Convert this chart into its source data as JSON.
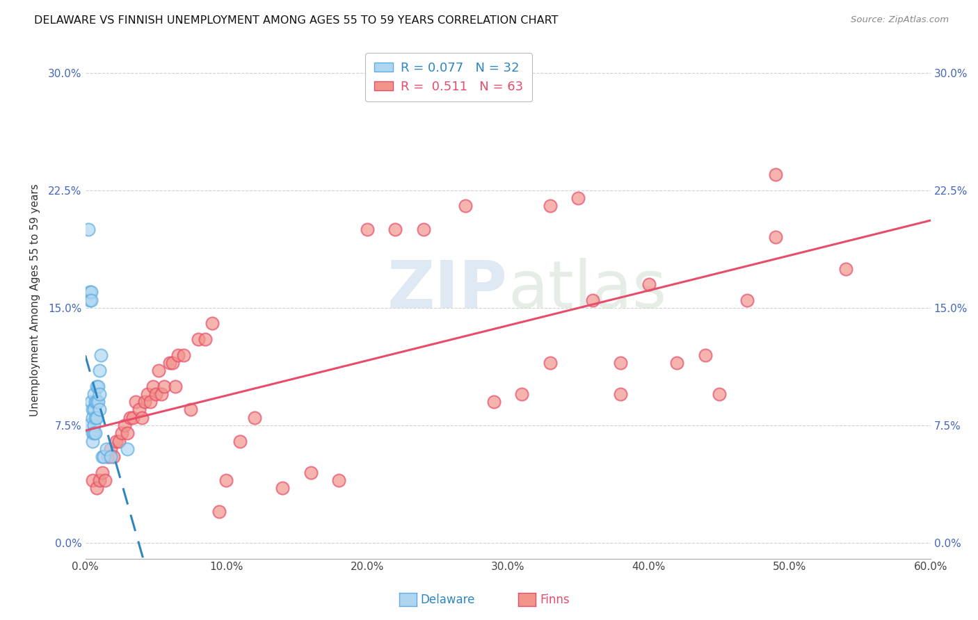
{
  "title": "DELAWARE VS FINNISH UNEMPLOYMENT AMONG AGES 55 TO 59 YEARS CORRELATION CHART",
  "source": "Source: ZipAtlas.com",
  "ylabel": "Unemployment Among Ages 55 to 59 years",
  "xlim": [
    0.0,
    0.6
  ],
  "ylim": [
    -0.01,
    0.32
  ],
  "xticks": [
    0.0,
    0.1,
    0.2,
    0.3,
    0.4,
    0.5,
    0.6
  ],
  "xticklabels": [
    "0.0%",
    "10.0%",
    "20.0%",
    "30.0%",
    "40.0%",
    "50.0%",
    "60.0%"
  ],
  "yticks": [
    0.0,
    0.075,
    0.15,
    0.225,
    0.3
  ],
  "yticklabels": [
    "0.0%",
    "7.5%",
    "15.0%",
    "22.5%",
    "30.0%"
  ],
  "delaware_face_color": "#AED6F1",
  "delaware_edge_color": "#5DADE2",
  "finns_face_color": "#F1948A",
  "finns_edge_color": "#E74C6A",
  "delaware_R": 0.077,
  "delaware_N": 32,
  "finns_R": 0.511,
  "finns_N": 63,
  "delaware_line_color": "#2E86C1",
  "finns_line_color": "#E74C6A",
  "watermark_text": "ZIPatlas",
  "background_color": "#FFFFFF",
  "grid_color": "#CCCCCC",
  "delaware_x": [
    0.002,
    0.002,
    0.003,
    0.003,
    0.004,
    0.004,
    0.004,
    0.005,
    0.005,
    0.005,
    0.005,
    0.006,
    0.006,
    0.006,
    0.006,
    0.007,
    0.007,
    0.007,
    0.008,
    0.008,
    0.008,
    0.009,
    0.009,
    0.01,
    0.01,
    0.01,
    0.011,
    0.012,
    0.013,
    0.015,
    0.018,
    0.03
  ],
  "delaware_y": [
    0.2,
    0.075,
    0.16,
    0.155,
    0.16,
    0.155,
    0.09,
    0.085,
    0.08,
    0.07,
    0.065,
    0.095,
    0.085,
    0.075,
    0.07,
    0.09,
    0.08,
    0.07,
    0.1,
    0.09,
    0.08,
    0.1,
    0.09,
    0.11,
    0.095,
    0.085,
    0.12,
    0.055,
    0.055,
    0.06,
    0.055,
    0.06
  ],
  "finns_x": [
    0.005,
    0.008,
    0.01,
    0.012,
    0.014,
    0.016,
    0.018,
    0.02,
    0.022,
    0.024,
    0.026,
    0.028,
    0.03,
    0.032,
    0.034,
    0.036,
    0.038,
    0.04,
    0.042,
    0.044,
    0.046,
    0.048,
    0.05,
    0.052,
    0.054,
    0.056,
    0.06,
    0.062,
    0.064,
    0.066,
    0.07,
    0.075,
    0.08,
    0.085,
    0.09,
    0.095,
    0.1,
    0.11,
    0.12,
    0.14,
    0.16,
    0.18,
    0.2,
    0.22,
    0.24,
    0.27,
    0.29,
    0.31,
    0.33,
    0.36,
    0.38,
    0.4,
    0.42,
    0.45,
    0.47,
    0.49,
    0.28,
    0.33,
    0.35,
    0.38,
    0.44,
    0.49,
    0.54
  ],
  "finns_y": [
    0.04,
    0.035,
    0.04,
    0.045,
    0.04,
    0.055,
    0.06,
    0.055,
    0.065,
    0.065,
    0.07,
    0.075,
    0.07,
    0.08,
    0.08,
    0.09,
    0.085,
    0.08,
    0.09,
    0.095,
    0.09,
    0.1,
    0.095,
    0.11,
    0.095,
    0.1,
    0.115,
    0.115,
    0.1,
    0.12,
    0.12,
    0.085,
    0.13,
    0.13,
    0.14,
    0.02,
    0.04,
    0.065,
    0.08,
    0.035,
    0.045,
    0.04,
    0.2,
    0.2,
    0.2,
    0.215,
    0.09,
    0.095,
    0.115,
    0.155,
    0.095,
    0.165,
    0.115,
    0.095,
    0.155,
    0.235,
    0.295,
    0.215,
    0.22,
    0.115,
    0.12,
    0.195,
    0.175
  ]
}
